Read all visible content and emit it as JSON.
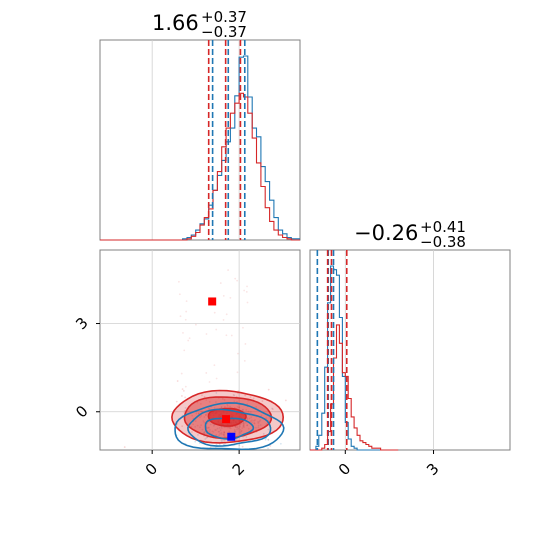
{
  "colors": {
    "blue": "#1f77b4",
    "red": "#d62728",
    "grid": "#cfcfcf",
    "frame": "#808080"
  },
  "chart_data": [
    {
      "type": "histogram",
      "panel": "top-left",
      "title": {
        "value": "1.66",
        "upper": "+0.37",
        "lower": "−0.37"
      },
      "xlim": [
        -1.2,
        3.4
      ],
      "grid": true,
      "quantiles": {
        "blue": [
          1.39,
          1.75,
          2.13
        ],
        "red": [
          1.3,
          1.69,
          2.03
        ]
      },
      "series": [
        {
          "color": "blue",
          "bins_start": -1.2,
          "bin_width": 0.1,
          "counts": [
            0,
            0,
            0,
            0,
            0,
            0,
            0,
            0,
            0,
            0,
            0,
            0,
            0,
            0,
            0,
            0,
            0,
            0,
            0,
            1,
            2,
            4,
            8,
            13,
            17,
            28,
            40,
            52,
            64,
            79,
            90,
            116,
            147,
            148,
            115,
            90,
            83,
            59,
            47,
            32,
            18,
            8,
            5,
            2,
            1,
            1
          ]
        },
        {
          "color": "red",
          "bins_start": -1.2,
          "bin_width": 0.1,
          "counts": [
            0,
            0,
            0,
            0,
            0,
            0,
            0,
            0,
            0,
            0,
            0,
            0,
            0,
            0,
            0,
            0,
            0,
            0,
            0,
            0,
            1,
            3,
            6,
            12,
            18,
            25,
            40,
            55,
            75,
            90,
            102,
            110,
            118,
            115,
            102,
            82,
            62,
            43,
            26,
            15,
            8,
            4,
            2,
            1,
            0,
            0
          ]
        }
      ]
    },
    {
      "type": "scatter",
      "panel": "bottom-left",
      "xlim": [
        -1.2,
        3.4
      ],
      "ylim": [
        -1.3,
        5.5
      ],
      "grid": true,
      "x_ticks": [
        "0",
        "2"
      ],
      "y_ticks": [
        "0",
        "3"
      ],
      "markers": [
        {
          "color": "red",
          "x": 1.38,
          "y": 3.75
        },
        {
          "color": "red",
          "x": 1.7,
          "y": -0.25
        },
        {
          "color": "blue",
          "x": 1.82,
          "y": -0.85
        }
      ],
      "contours": {
        "red": {
          "cx": 1.72,
          "cy": -0.18,
          "rx_levels": [
            0.43,
            1.0,
            1.28
          ],
          "ry_levels": [
            0.3,
            0.7,
            0.88
          ]
        },
        "blue": {
          "cx": 1.75,
          "cy": -0.55,
          "rx_levels": [
            0.55,
            0.95,
            1.25
          ],
          "ry_levels": [
            0.35,
            0.6,
            0.78
          ]
        }
      }
    },
    {
      "type": "histogram",
      "panel": "bottom-right",
      "title": {
        "value": "−0.26",
        "upper": "+0.41",
        "lower": "−0.38"
      },
      "xlim": [
        -1.2,
        5.6
      ],
      "x_ticks": [
        "0",
        "3"
      ],
      "grid": true,
      "quantiles": {
        "blue": [
          -0.95,
          -0.58,
          -0.4
        ],
        "red": [
          -0.6,
          -0.47,
          0.05
        ]
      },
      "series": [
        {
          "color": "blue",
          "bins_start": -1.2,
          "bin_width": 0.1,
          "counts": [
            0,
            0,
            2,
            8,
            20,
            45,
            80,
            100,
            98,
            95,
            72,
            40,
            15,
            6,
            2,
            1,
            0,
            0,
            0,
            0,
            0,
            0,
            0,
            0,
            0,
            0,
            0,
            0,
            0,
            0
          ]
        },
        {
          "color": "red",
          "bins_start": -1.2,
          "bin_width": 0.1,
          "counts": [
            0,
            0,
            0,
            0,
            1,
            3,
            10,
            25,
            50,
            68,
            58,
            42,
            40,
            28,
            18,
            12,
            8,
            5,
            4,
            3,
            2,
            1,
            1,
            1,
            0,
            0,
            0,
            0,
            0,
            0
          ]
        }
      ]
    }
  ]
}
